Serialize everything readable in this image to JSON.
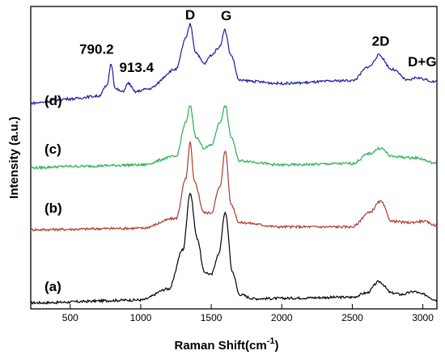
{
  "chart_data": {
    "type": "line",
    "title": "",
    "xlabel": "Raman  Shift",
    "xlabel_unit": "(cm",
    "xlabel_unit_sup": "-1",
    "xlabel_unit_close": ")",
    "ylabel": "Intensity (a.u.)",
    "xlim": [
      220,
      3100
    ],
    "ylim": [
      0,
      10
    ],
    "x_ticks": [
      500,
      1000,
      1500,
      2000,
      2500,
      3000
    ],
    "y_ticks_labeled": false,
    "legend": "none",
    "series": [
      {
        "label": "(a)",
        "color": "#000000",
        "baseline": 0.1,
        "x": [
          220,
          1000,
          1200,
          1300,
          1350,
          1400,
          1450,
          1500,
          1550,
          1600,
          1650,
          1700,
          1800,
          2500,
          2600,
          2690,
          2780,
          2850,
          2940,
          3000,
          3100
        ],
        "y": [
          0.1,
          0.2,
          0.6,
          2.0,
          4.0,
          2.4,
          1.2,
          1.1,
          1.8,
          3.3,
          1.2,
          0.4,
          0.25,
          0.3,
          0.45,
          0.85,
          0.45,
          0.4,
          0.5,
          0.4,
          0.2
        ]
      },
      {
        "label": "(b)",
        "color": "#b03a2e",
        "baseline": 2.7,
        "x": [
          220,
          1000,
          1250,
          1320,
          1350,
          1380,
          1450,
          1500,
          1560,
          1600,
          1640,
          1700,
          2000,
          2500,
          2620,
          2700,
          2780,
          2900,
          3000,
          3100
        ],
        "y": [
          2.7,
          2.75,
          3.1,
          4.5,
          5.8,
          4.4,
          3.3,
          3.3,
          4.2,
          5.5,
          3.6,
          2.95,
          2.8,
          2.8,
          3.3,
          3.7,
          3.0,
          2.95,
          3.0,
          2.85
        ]
      },
      {
        "label": "(c)",
        "color": "#22b24c",
        "baseline": 4.9,
        "x": [
          220,
          500,
          1000,
          1250,
          1320,
          1350,
          1390,
          1450,
          1500,
          1560,
          1600,
          1640,
          1700,
          2000,
          2500,
          2620,
          2700,
          2780,
          2950,
          3100
        ],
        "y": [
          4.9,
          4.95,
          5.0,
          5.3,
          6.5,
          7.1,
          6.0,
          5.6,
          5.7,
          6.5,
          7.1,
          6.0,
          5.15,
          5.0,
          5.05,
          5.4,
          5.6,
          5.3,
          5.25,
          5.05
        ]
      },
      {
        "label": "(d)",
        "color": "#1a1aa8",
        "baseline": 7.2,
        "x": [
          220,
          500,
          700,
          760,
          790,
          820,
          870,
          913,
          960,
          1050,
          1250,
          1320,
          1350,
          1390,
          1450,
          1500,
          1560,
          1595,
          1640,
          1700,
          2000,
          2500,
          2620,
          2690,
          2780,
          2900,
          2950,
          3100
        ],
        "y": [
          7.2,
          7.35,
          7.45,
          7.8,
          8.6,
          7.7,
          7.6,
          7.9,
          7.6,
          7.7,
          8.4,
          9.5,
          10.0,
          9.0,
          8.6,
          8.9,
          9.2,
          9.8,
          8.9,
          8.0,
          7.9,
          8.0,
          8.5,
          8.9,
          8.4,
          8.0,
          8.1,
          7.95
        ]
      }
    ],
    "annotations": [
      {
        "text": "790.2",
        "x": 790,
        "y": 8.6
      },
      {
        "text": "913.4",
        "x": 913,
        "y": 7.9
      },
      {
        "text": "D",
        "x": 1350,
        "y": 10.0
      },
      {
        "text": "G",
        "x": 1595,
        "y": 9.8
      },
      {
        "text": "2D",
        "x": 2690,
        "y": 8.9
      },
      {
        "text": "D+G",
        "x": 2950,
        "y": 8.1
      }
    ]
  }
}
